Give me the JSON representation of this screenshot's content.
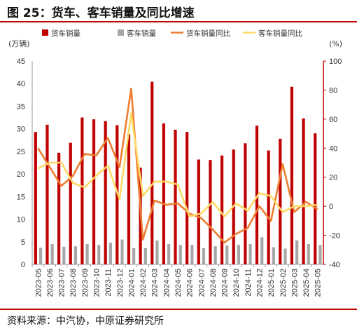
{
  "header": {
    "title": "图 25：货车、客车销量及同比增速"
  },
  "footer": {
    "source": "资料来源：中汽协，中原证券研究所"
  },
  "colors": {
    "accent_rule": "#c00000",
    "truck": "#c00000",
    "bus": "#a6a6a6",
    "truck_yoy": "#ed7d31",
    "bus_yoy": "#ffd966",
    "right_axis": "#c00000"
  },
  "chart_data": {
    "type": "bar",
    "left_unit": "(万辆)",
    "right_unit": "(%)",
    "ylim_left": [
      0,
      45
    ],
    "yticks_left": [
      "0",
      "5",
      "10",
      "15",
      "20",
      "25",
      "30",
      "35",
      "40",
      "45"
    ],
    "ylim_right": [
      -40,
      100
    ],
    "yticks_right": [
      "-40",
      "-20",
      "0",
      "20",
      "40",
      "60",
      "80",
      "100"
    ],
    "categories": [
      "2023-05",
      "2023-06",
      "2023-07",
      "2023-08",
      "2023-09",
      "2023-10",
      "2023-11",
      "2023-12",
      "2024-01",
      "2024-02",
      "2024-03",
      "2024-04",
      "2024-05",
      "2024-06",
      "2024-07",
      "2024-08",
      "2024-09",
      "2024-10",
      "2024-11",
      "2024-12",
      "2025-01",
      "2025-02",
      "2025-03",
      "2025-04",
      "2025-05"
    ],
    "bar_series": [
      {
        "name": "货车销量",
        "axis": "left",
        "values": [
          29.3,
          30.9,
          24.7,
          26.9,
          32.5,
          32.1,
          31.7,
          30.8,
          28.8,
          21.4,
          40.4,
          31.2,
          29.8,
          29.3,
          23.2,
          23.1,
          24.1,
          25.4,
          26.8,
          30.7,
          25.2,
          27.8,
          39.3,
          32.3,
          29.0
        ]
      },
      {
        "name": "客车销量",
        "axis": "left",
        "values": [
          3.7,
          4.5,
          3.9,
          4.0,
          4.5,
          4.3,
          4.8,
          5.5,
          3.6,
          3.6,
          5.3,
          4.5,
          4.3,
          4.3,
          3.6,
          4.0,
          4.2,
          4.3,
          4.5,
          6.0,
          3.8,
          3.5,
          5.3,
          4.5,
          4.3
        ]
      },
      {
        "name": "货车销量同比",
        "axis": "right",
        "type": "line",
        "values": [
          40,
          27,
          14,
          21,
          36,
          35,
          47,
          27,
          81,
          -23,
          4,
          1,
          2,
          -5,
          -8,
          -16,
          -25,
          -19,
          -15,
          0,
          -10,
          29,
          -4,
          3,
          -2
        ]
      },
      {
        "name": "客车销量同比",
        "axis": "right",
        "type": "line",
        "values": [
          26,
          30,
          30,
          16,
          13,
          21,
          28,
          5,
          64,
          7,
          17,
          17,
          15,
          -7,
          -5,
          3,
          -7,
          2,
          -3,
          9,
          7,
          -4,
          0,
          0,
          1
        ]
      }
    ]
  }
}
